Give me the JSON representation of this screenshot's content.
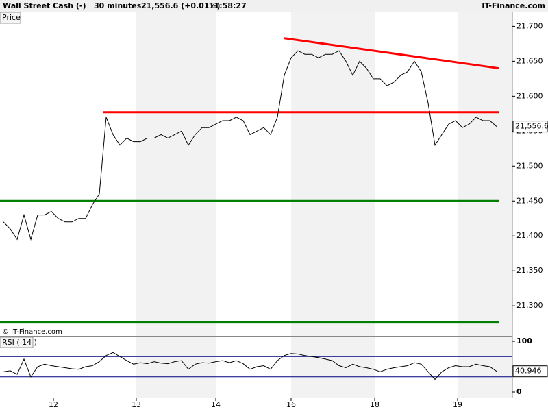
{
  "header": {
    "symbol": "Wall Street Cash (-)",
    "timeframe": "30 minutes",
    "quote": "21,556.6 (+0.01%)",
    "time": "11:58:27",
    "brand": "IT-Finance.com",
    "panel_label": "Price",
    "copyright": "© IT-Finance.com"
  },
  "chart_data": [
    {
      "type": "line",
      "xlim": [
        -0.5,
        74.3
      ],
      "ylim": [
        21257,
        21721
      ],
      "x": [
        0,
        1,
        2,
        3,
        4,
        5,
        6,
        7,
        8,
        9,
        10,
        11,
        12,
        13,
        14,
        15,
        16,
        17,
        18,
        19,
        20,
        21,
        22,
        23,
        24,
        25,
        26,
        27,
        28,
        29,
        30,
        31,
        32,
        33,
        34,
        35,
        36,
        37,
        38,
        39,
        40,
        41,
        42,
        43,
        44,
        45,
        46,
        47,
        48,
        49,
        50,
        51,
        52,
        53,
        54,
        55,
        56,
        57,
        58,
        59,
        60,
        61,
        62,
        63,
        64,
        65,
        66,
        67,
        68,
        69,
        70,
        71,
        72
      ],
      "xticks": [
        {
          "value": 7.3,
          "label": "12"
        },
        {
          "value": 19.4,
          "label": "13"
        },
        {
          "value": 31,
          "label": "14"
        },
        {
          "value": 42,
          "label": "16"
        },
        {
          "value": 54.2,
          "label": "18"
        },
        {
          "value": 66.3,
          "label": "19"
        }
      ],
      "yticks": [
        {
          "value": 21300,
          "label": "21,300"
        },
        {
          "value": 21350,
          "label": "21,350"
        },
        {
          "value": 21400,
          "label": "21,400"
        },
        {
          "value": 21450,
          "label": "21,450"
        },
        {
          "value": 21500,
          "label": "21,500"
        },
        {
          "value": 21550,
          "label": "21,550"
        },
        {
          "value": 21600,
          "label": "21,600"
        },
        {
          "value": 21650,
          "label": "21,650"
        },
        {
          "value": 21700,
          "label": "21,700"
        }
      ],
      "series": [
        {
          "color": "#000000",
          "values": [
            21420,
            21410,
            21395,
            21430,
            21395,
            21430,
            21430,
            21435,
            21425,
            21420,
            21420,
            21425,
            21425,
            21445,
            21460,
            21570,
            21545,
            21530,
            21540,
            21535,
            21535,
            21540,
            21540,
            21545,
            21540,
            21545,
            21550,
            21530,
            21545,
            21555,
            21555,
            21560,
            21565,
            21565,
            21570,
            21565,
            21545,
            21550,
            21555,
            21545,
            21570,
            21630,
            21655,
            21665,
            21660,
            21660,
            21655,
            21660,
            21660,
            21665,
            21650,
            21630,
            21650,
            21640,
            21625,
            21625,
            21615,
            21620,
            21630,
            21635,
            21650,
            21635,
            21590,
            21530,
            21545,
            21560,
            21565,
            21555,
            21560,
            21570,
            21565,
            21565,
            21556.6
          ]
        }
      ],
      "current": {
        "value": 21556.6,
        "label": "21,556.6"
      },
      "annotations": [
        {
          "color": "#ff0000",
          "x1": 14.5,
          "x2": 72.3,
          "y1": 21577,
          "y2": 21577
        },
        {
          "color": "#ff0000",
          "x1": 41,
          "x2": 72.3,
          "y1": 21683,
          "y2": 21640
        },
        {
          "color": "#008000",
          "x1": -0.5,
          "x2": 72.3,
          "y1": 21450,
          "y2": 21450
        },
        {
          "color": "#008000",
          "x1": -0.5,
          "x2": 72.3,
          "y1": 21277,
          "y2": 21277
        }
      ]
    },
    {
      "type": "line",
      "title": "RSI ( 14 )",
      "xlim": [
        -0.5,
        74.3
      ],
      "ylim": [
        -10.8,
        110.8
      ],
      "yticks": [
        0,
        100
      ],
      "levels": [
        30,
        70
      ],
      "level_color": "#000080",
      "series": [
        {
          "color": "#000000",
          "values": [
            40,
            42,
            35,
            65,
            30,
            50,
            55,
            52,
            50,
            48,
            46,
            45,
            50,
            52,
            60,
            72,
            78,
            70,
            62,
            55,
            58,
            56,
            60,
            57,
            56,
            60,
            62,
            45,
            55,
            58,
            57,
            60,
            62,
            58,
            62,
            56,
            45,
            50,
            52,
            45,
            62,
            72,
            76,
            75,
            72,
            70,
            68,
            65,
            62,
            52,
            48,
            55,
            50,
            48,
            45,
            40,
            45,
            48,
            50,
            52,
            58,
            55,
            40,
            25,
            40,
            48,
            52,
            50,
            50,
            55,
            52,
            50,
            40.946
          ]
        }
      ],
      "current": {
        "value": 40.946,
        "label": "40.946"
      }
    }
  ]
}
